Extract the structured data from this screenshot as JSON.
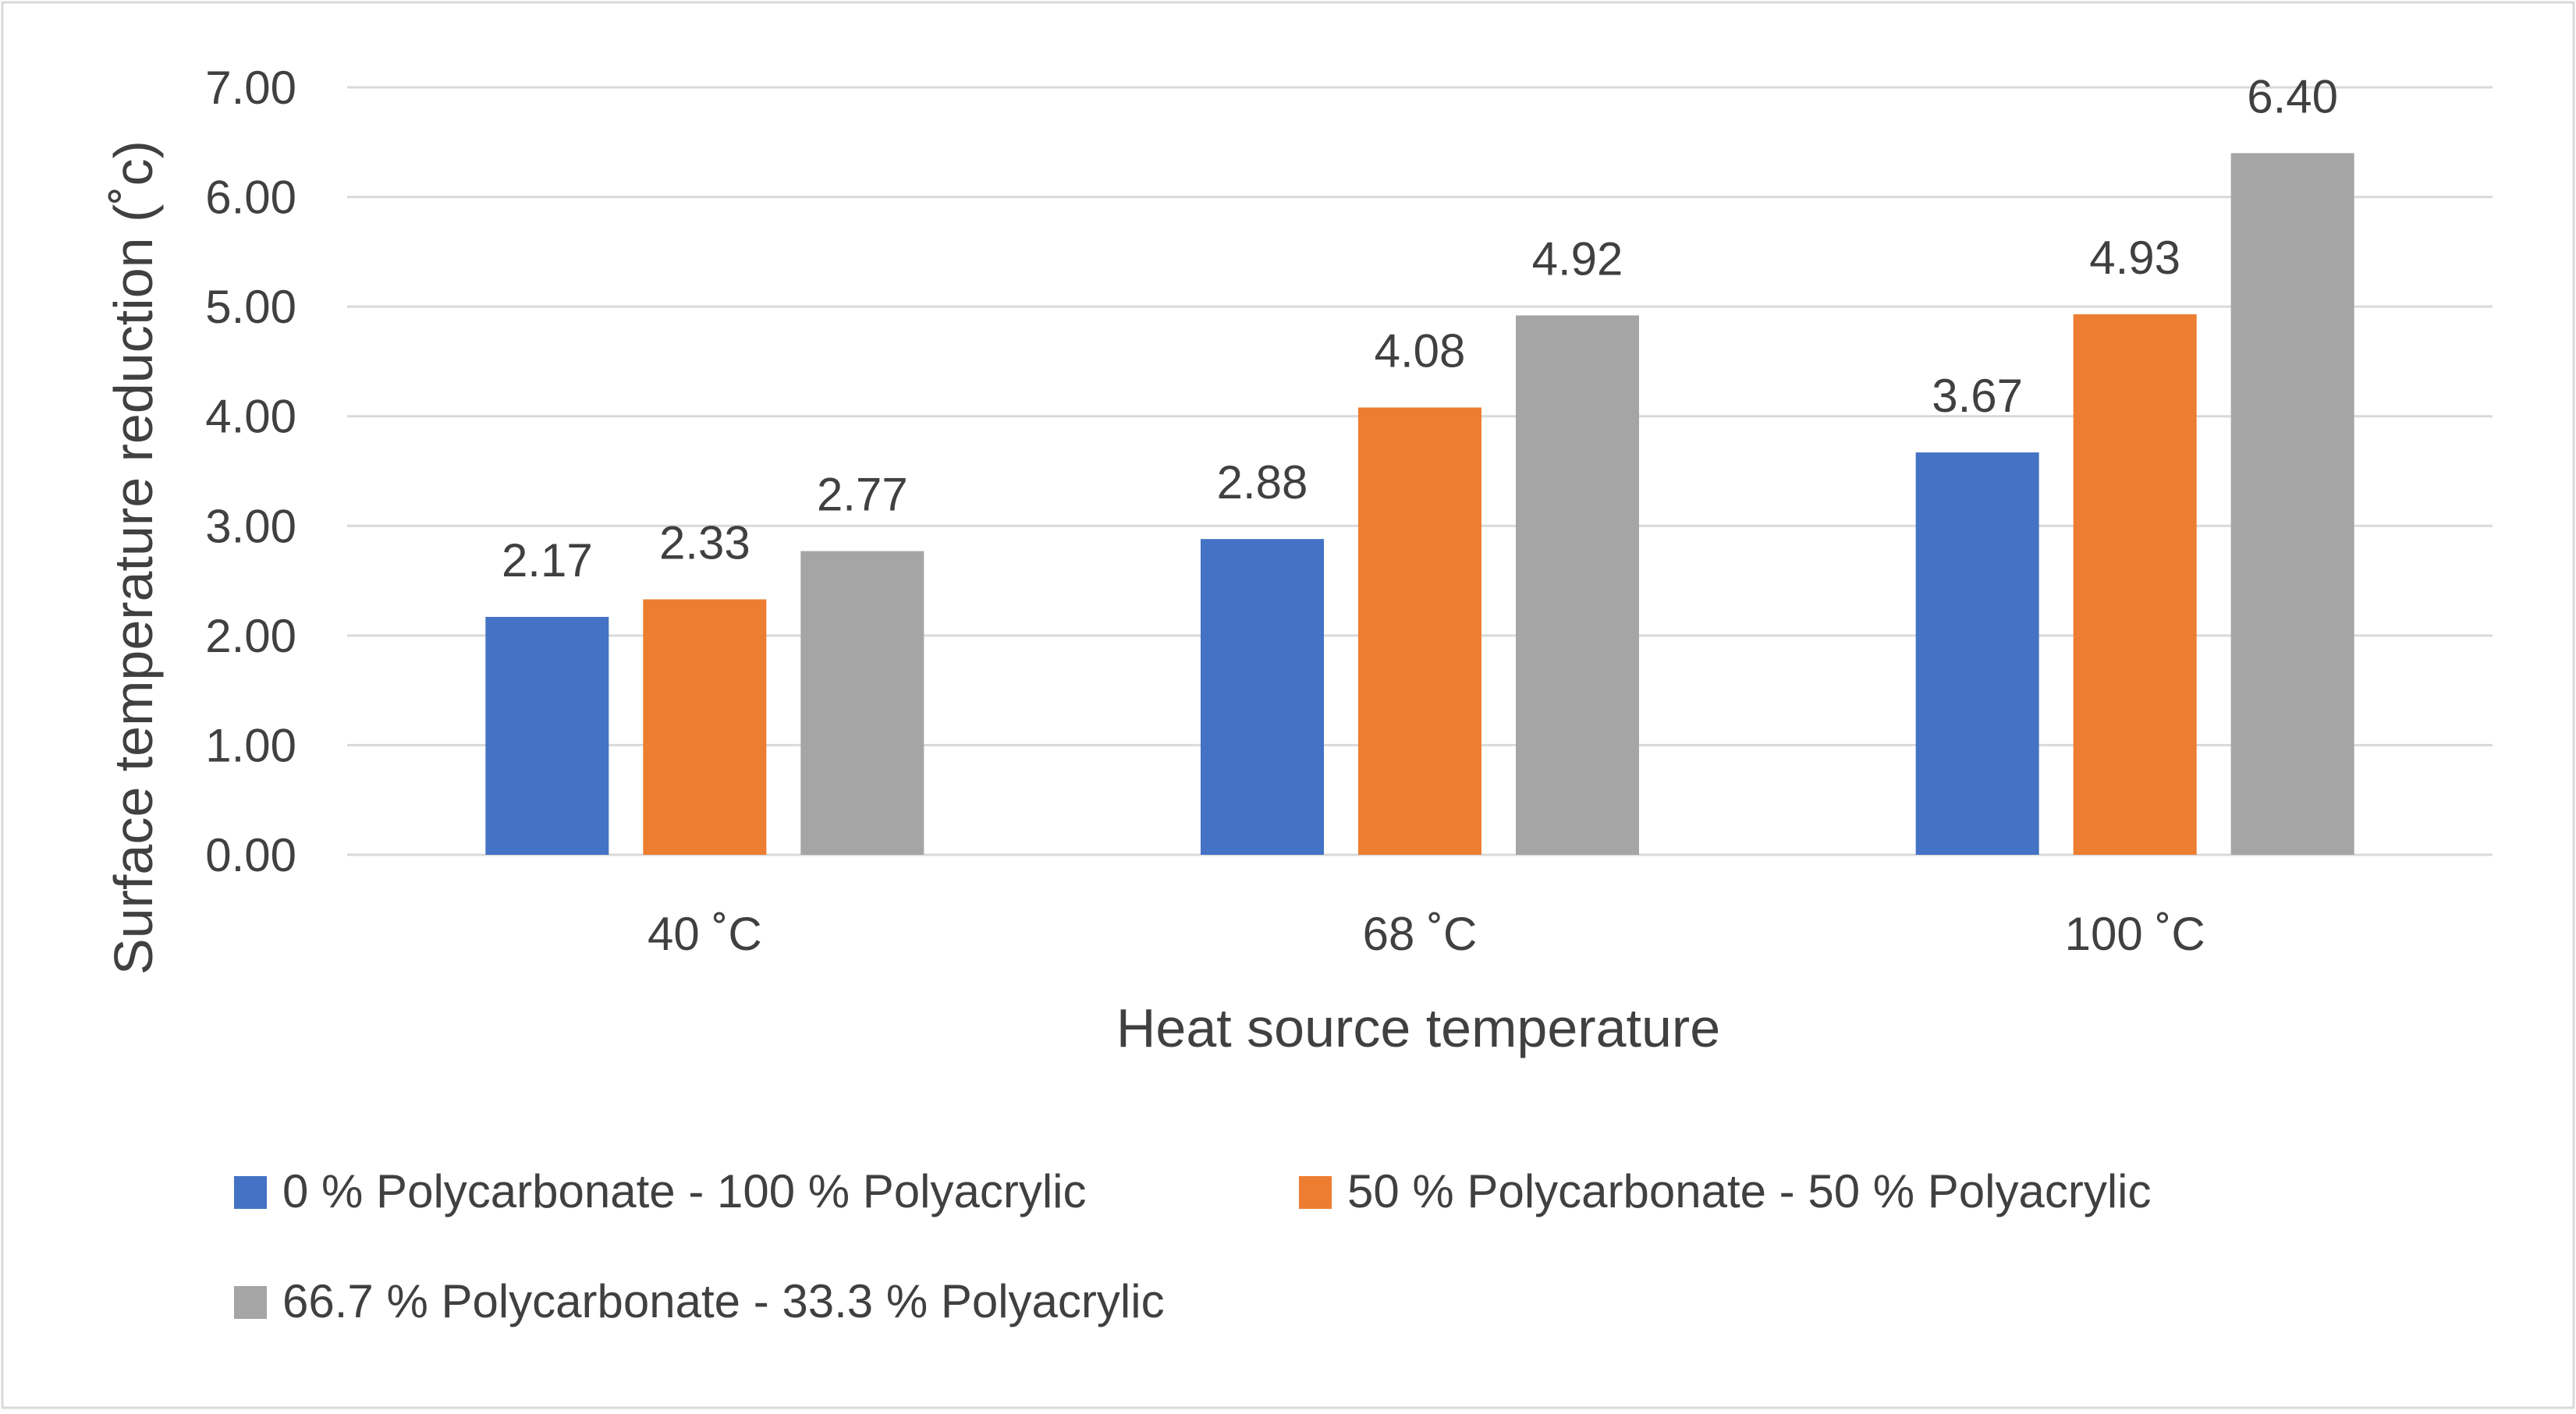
{
  "chart_data": {
    "type": "bar",
    "title": "",
    "xlabel": "Heat source temperature",
    "ylabel": "Surface temperature reduction (˚c)",
    "categories": [
      "40 ˚C",
      "68 ˚C",
      "100 ˚C"
    ],
    "series": [
      {
        "name": "0 % Polycarbonate - 100 % Polyacrylic",
        "color": "#4472C4",
        "values": [
          2.17,
          2.88,
          3.67
        ],
        "labels": [
          "2.17",
          "2.88",
          "3.67"
        ]
      },
      {
        "name": "50 % Polycarbonate - 50 % Polyacrylic",
        "color": "#ED7D31",
        "values": [
          2.33,
          4.08,
          4.93
        ],
        "labels": [
          "2.33",
          "4.08",
          "4.93"
        ]
      },
      {
        "name": "66.7 % Polycarbonate - 33.3  % Polyacrylic",
        "color": "#A5A5A5",
        "values": [
          2.77,
          4.92,
          6.4
        ],
        "labels": [
          "2.77",
          "4.92",
          "6.40"
        ]
      }
    ],
    "ylim": [
      0,
      7
    ],
    "yticks": [
      "0.00",
      "1.00",
      "2.00",
      "3.00",
      "4.00",
      "5.00",
      "6.00",
      "7.00"
    ],
    "grid": true,
    "legend": "bottom",
    "gridline_color": "#D9D9D9",
    "text_color": "#404040"
  }
}
